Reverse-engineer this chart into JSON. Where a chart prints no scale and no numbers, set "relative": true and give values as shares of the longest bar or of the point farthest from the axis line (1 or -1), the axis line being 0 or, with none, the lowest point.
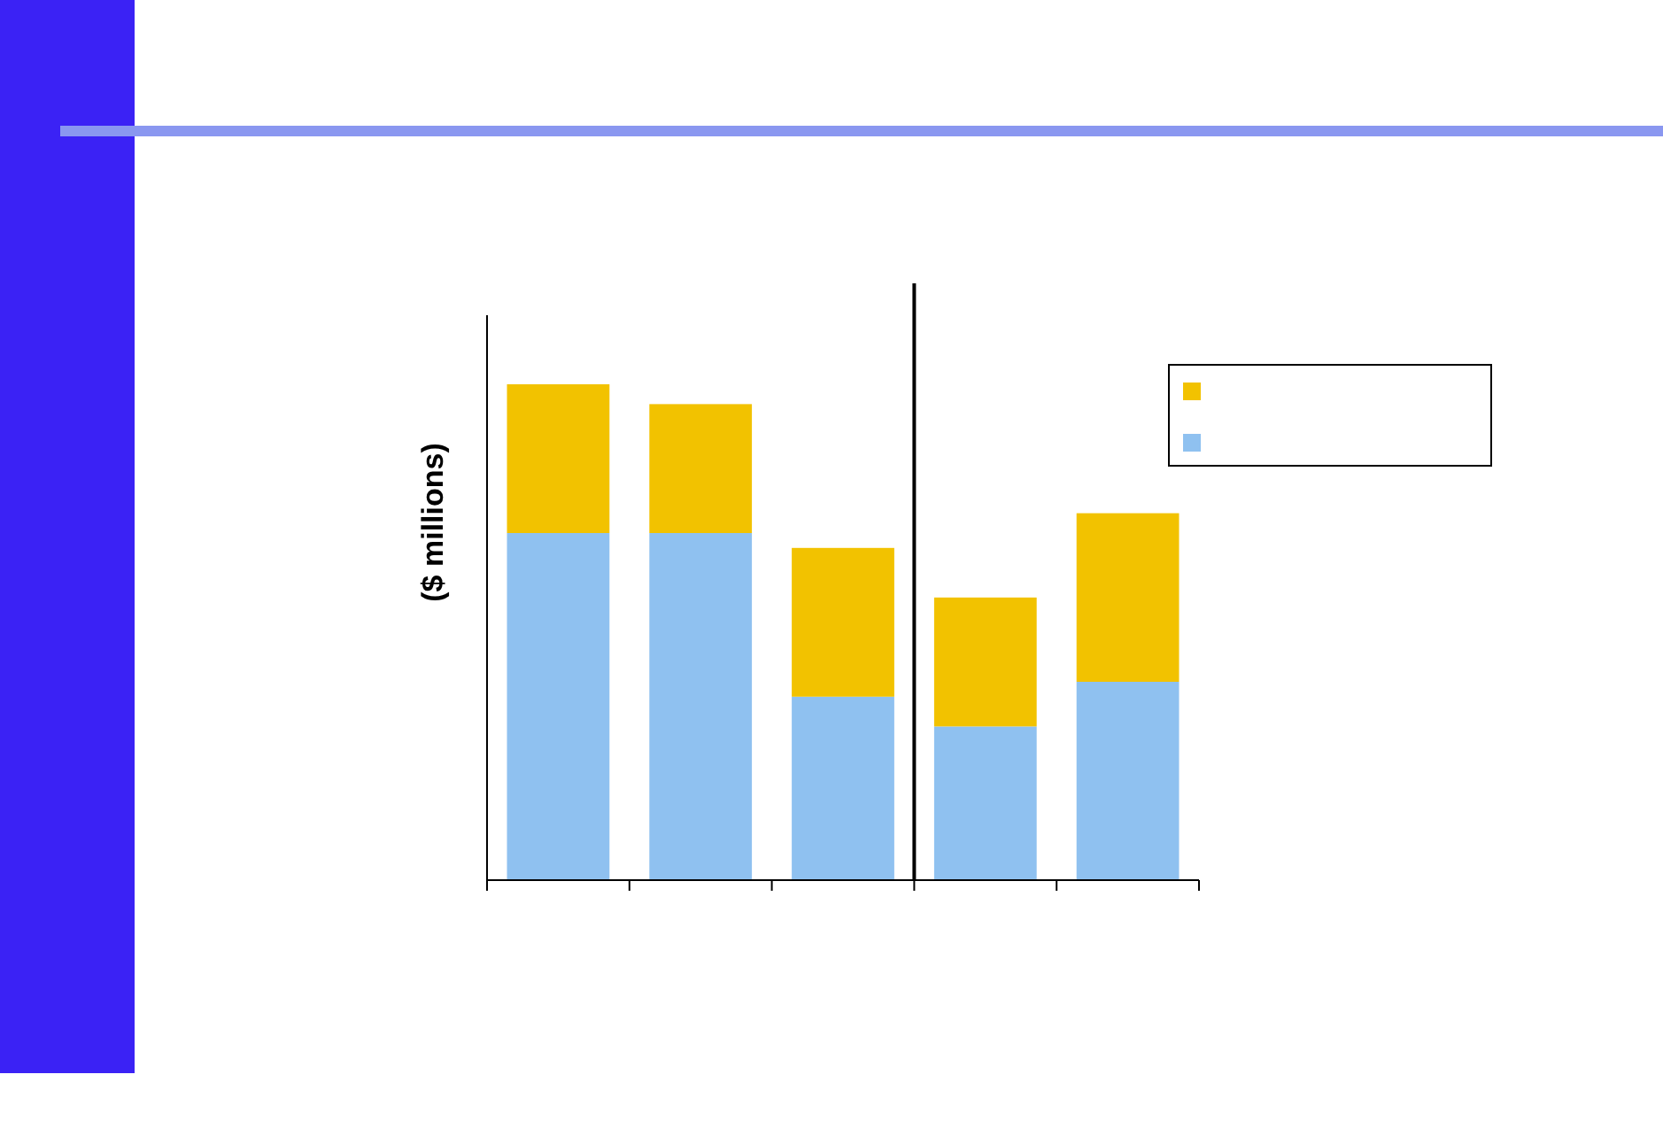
{
  "chart_data": {
    "type": "bar",
    "ylabel": "($ millions)",
    "relative": true,
    "stacked": true,
    "categories": [
      null,
      null,
      null,
      null,
      null
    ],
    "series": [
      {
        "color": "#8fc1f0",
        "values": [
          0.7,
          0.7,
          0.37,
          0.31,
          0.4
        ]
      },
      {
        "color": "#f2c200",
        "values": [
          0.3,
          0.26,
          0.3,
          0.26,
          0.34
        ]
      }
    ]
  }
}
